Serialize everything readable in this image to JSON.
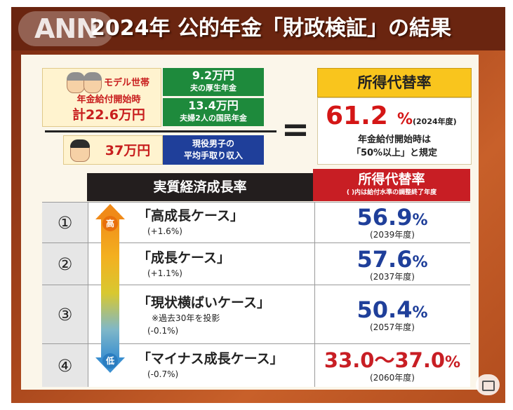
{
  "header": {
    "logo_text": "ANN",
    "title": "2024年 公的年金「財政検証」の結果"
  },
  "formula": {
    "model_household_label": "モデル世帯",
    "model_household_sub": "年金給付開始時",
    "model_household_total": "計22.6万円",
    "husband_pension_amount": "9.2万円",
    "husband_pension_desc": "夫の厚生年金",
    "couple_national_amount": "13.4万円",
    "couple_national_desc": "夫婦2人の国民年金",
    "worker_income_amount": "37万円",
    "worker_income_desc_line1": "現役男子の",
    "worker_income_desc_line2": "平均手取り収入",
    "equals_sign": "=",
    "replacement_rate_heading": "所得代替率",
    "replacement_rate_value": "61.2",
    "replacement_rate_unit": "%",
    "replacement_rate_year": "(2024年度)",
    "replacement_rate_note_line1": "年金給付開始時は",
    "replacement_rate_note_line2": "「50%以上」と規定"
  },
  "table": {
    "col_growth_heading": "実質経済成長率",
    "col_rate_heading": "所得代替率",
    "col_rate_subheading": "( )内は給付水準の調整終了年度",
    "arrow_high_label": "高",
    "arrow_low_label": "低",
    "rows": [
      {
        "num": "①",
        "case": "「高成長ケース」",
        "growth": "(+1.6%)",
        "note": "",
        "rate": "56.9",
        "unit": "%",
        "year": "(2039年度)",
        "rate_color": "#1f3f9a"
      },
      {
        "num": "②",
        "case": "「成長ケース」",
        "growth": "(+1.1%)",
        "note": "",
        "rate": "57.6",
        "unit": "%",
        "year": "(2037年度)",
        "rate_color": "#1f3f9a"
      },
      {
        "num": "③",
        "case": "「現状横ばいケース」",
        "growth": "(-0.1%)",
        "note": "※過去30年を投影",
        "rate": "50.4",
        "unit": "%",
        "year": "(2057年度)",
        "rate_color": "#1f3f9a"
      },
      {
        "num": "④",
        "case": "「マイナス成長ケース」",
        "growth": "(-0.7%)",
        "note": "",
        "rate": "33.0〜37.0",
        "unit": "%",
        "year": "(2060年度)",
        "rate_color": "#c81e24"
      }
    ]
  },
  "colors": {
    "title_bg": "#6a2510",
    "pension_green": "#1e8a3c",
    "income_blue": "#1f3f9a",
    "rate_red": "#d41616",
    "rate_heading_yellow": "#f9c51d",
    "table_header_dark": "#231e1e",
    "table_header_red": "#c81e24"
  },
  "icons": {
    "elderly_couple": "elderly-couple-icon",
    "young_man": "young-man-icon",
    "growth_arrow": "up-down-arrow-icon",
    "display_mode": "screen-mode-icon"
  }
}
